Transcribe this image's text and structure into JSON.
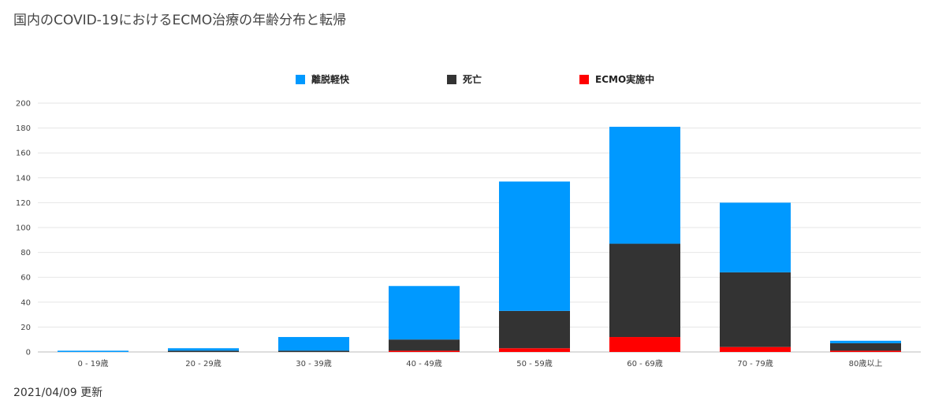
{
  "title": "国内のCOVID-19におけるECMO治療の年齢分布と転帰",
  "footer": "2021/04/09 更新",
  "chart_data": {
    "type": "bar",
    "stacked": true,
    "categories": [
      "0 - 19歳",
      "20 - 29歳",
      "30 - 39歳",
      "40 - 49歳",
      "50 - 59歳",
      "60 - 69歳",
      "70 - 79歳",
      "80歳以上"
    ],
    "series": [
      {
        "name": "ECMO実施中",
        "color": "#ff0000",
        "values": [
          0,
          0,
          0,
          1,
          3,
          12,
          4,
          1
        ]
      },
      {
        "name": "死亡",
        "color": "#333333",
        "values": [
          0,
          1,
          1,
          9,
          30,
          75,
          60,
          6
        ]
      },
      {
        "name": "離脱軽快",
        "color": "#0099ff",
        "values": [
          1,
          2,
          11,
          43,
          104,
          94,
          56,
          2
        ]
      }
    ],
    "legend": [
      {
        "name": "離脱軽快",
        "color": "#0099ff"
      },
      {
        "name": "死亡",
        "color": "#333333"
      },
      {
        "name": "ECMO実施中",
        "color": "#ff0000"
      }
    ],
    "legend_position": "top",
    "ylim": [
      0,
      200
    ],
    "yticks": [
      "0",
      "20",
      "40",
      "60",
      "80",
      "100",
      "120",
      "140",
      "160",
      "180",
      "200"
    ],
    "grid": true
  }
}
